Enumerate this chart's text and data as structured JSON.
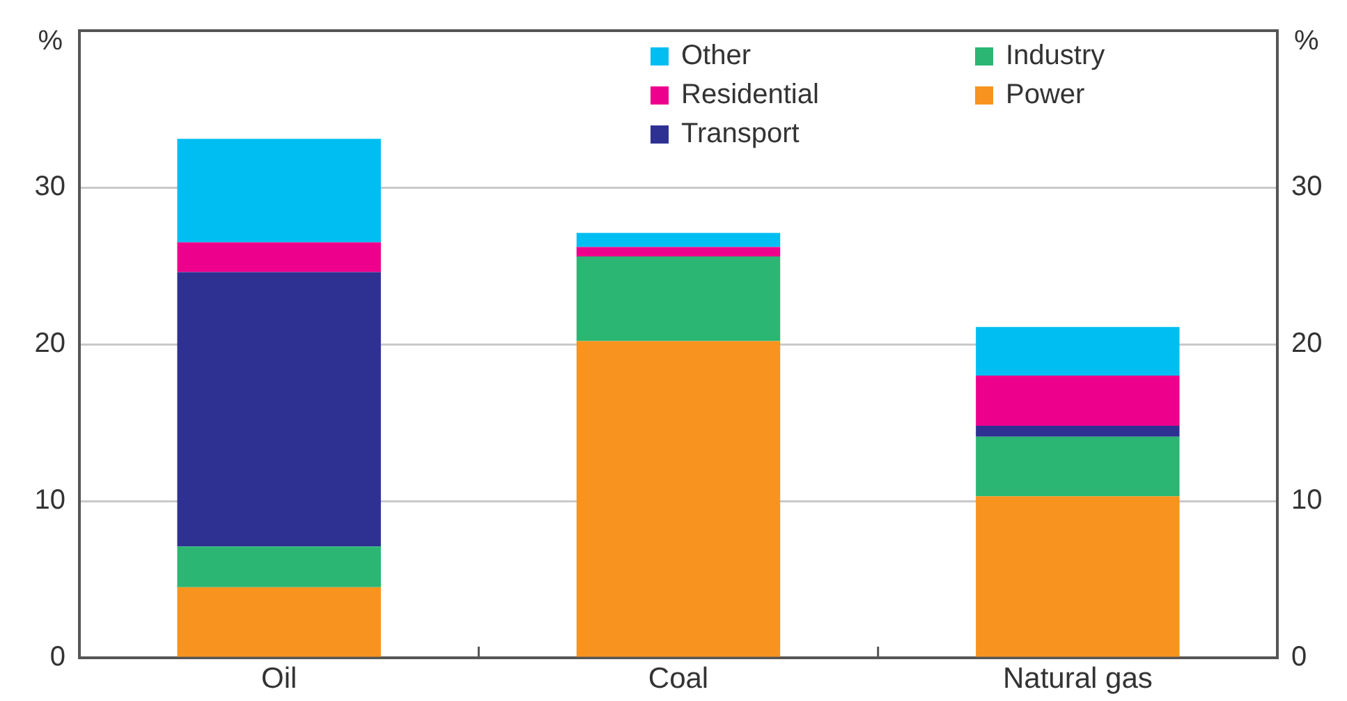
{
  "chart_data": {
    "type": "bar",
    "stacked": true,
    "categories": [
      "Oil",
      "Coal",
      "Natural gas"
    ],
    "series": [
      {
        "name": "Power",
        "color": "#f7931e",
        "values": [
          4.5,
          20.2,
          10.3
        ]
      },
      {
        "name": "Industry",
        "color": "#2bb673",
        "values": [
          2.6,
          5.4,
          3.8
        ]
      },
      {
        "name": "Transport",
        "color": "#2e3192",
        "values": [
          17.5,
          0,
          0.7
        ]
      },
      {
        "name": "Residential",
        "color": "#ec008c",
        "values": [
          1.9,
          0.6,
          3.2
        ]
      },
      {
        "name": "Other",
        "color": "#00bef2",
        "values": [
          6.6,
          0.9,
          3.1
        ]
      }
    ],
    "ylabel": "%",
    "y2label": "%",
    "ylim": [
      0,
      40
    ],
    "yticks": [
      0,
      10,
      20,
      30
    ],
    "y2lim": [
      0,
      40
    ],
    "y2ticks": [
      0,
      10,
      20,
      30
    ],
    "grid": "y",
    "legend": "top right"
  }
}
